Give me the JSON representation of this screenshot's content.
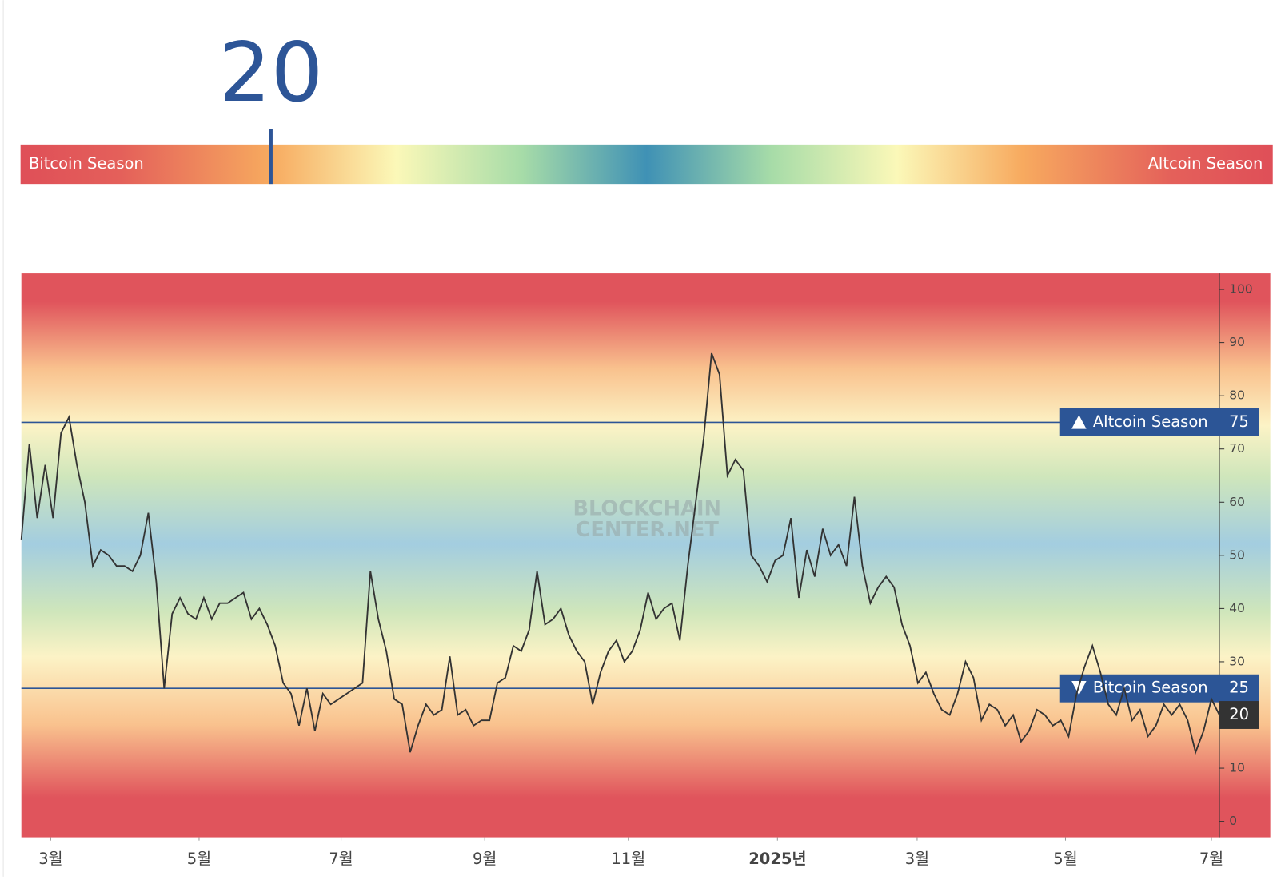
{
  "chart_data": {
    "type": "line",
    "current_value": 20,
    "gauge_lim": [
      0,
      100
    ],
    "gauge_left_label": "Bitcoin Season",
    "gauge_right_label": "Altcoin Season",
    "watermark": [
      "BLOCKCHAIN",
      "CENTER.NET"
    ],
    "thresholds": [
      {
        "label": "Altcoin Season",
        "value": 75
      },
      {
        "label": "Bitcoin Season",
        "value": 25
      }
    ],
    "ylim": [
      -3,
      103
    ],
    "yticks": [
      0,
      10,
      20,
      30,
      40,
      50,
      60,
      70,
      80,
      90,
      100
    ],
    "xlim": [
      0,
      151
    ],
    "xticks": [
      {
        "value": 3.7,
        "label": "3월"
      },
      {
        "value": 22.4,
        "label": "5월"
      },
      {
        "value": 40.3,
        "label": "7월"
      },
      {
        "value": 58.4,
        "label": "9월"
      },
      {
        "value": 76.5,
        "label": "11월"
      },
      {
        "value": 95.3,
        "label": "2025년"
      },
      {
        "value": 112.9,
        "label": "3월"
      },
      {
        "value": 131.6,
        "label": "5월"
      },
      {
        "value": 150,
        "label": "7월"
      }
    ],
    "color": "#333333",
    "values": [
      53,
      71,
      57,
      67,
      57,
      73,
      76,
      67,
      60,
      48,
      51,
      50,
      48,
      48,
      47,
      50,
      58,
      45,
      25,
      39,
      42,
      39,
      38,
      42,
      38,
      41,
      41,
      42,
      43,
      38,
      40,
      37,
      33,
      26,
      24,
      18,
      25,
      17,
      24,
      22,
      23,
      24,
      25,
      26,
      47,
      38,
      32,
      23,
      22,
      13,
      18,
      22,
      20,
      21,
      31,
      20,
      21,
      18,
      19,
      19,
      26,
      27,
      33,
      32,
      36,
      47,
      37,
      38,
      40,
      35,
      32,
      30,
      22,
      28,
      32,
      34,
      30,
      32,
      36,
      43,
      38,
      40,
      41,
      34,
      48,
      60,
      72,
      88,
      84,
      65,
      68,
      66,
      50,
      48,
      45,
      49,
      50,
      57,
      42,
      51,
      46,
      55,
      50,
      52,
      48,
      61,
      48,
      41,
      44,
      46,
      44,
      37,
      33,
      26,
      28,
      24,
      21,
      20,
      24,
      30,
      27,
      19,
      22,
      21,
      18,
      20,
      15,
      17,
      21,
      20,
      18,
      19,
      16,
      24,
      29,
      33,
      28,
      22,
      20,
      25,
      19,
      21,
      16,
      18,
      22,
      20,
      22,
      19,
      13,
      17,
      23,
      20
    ]
  }
}
